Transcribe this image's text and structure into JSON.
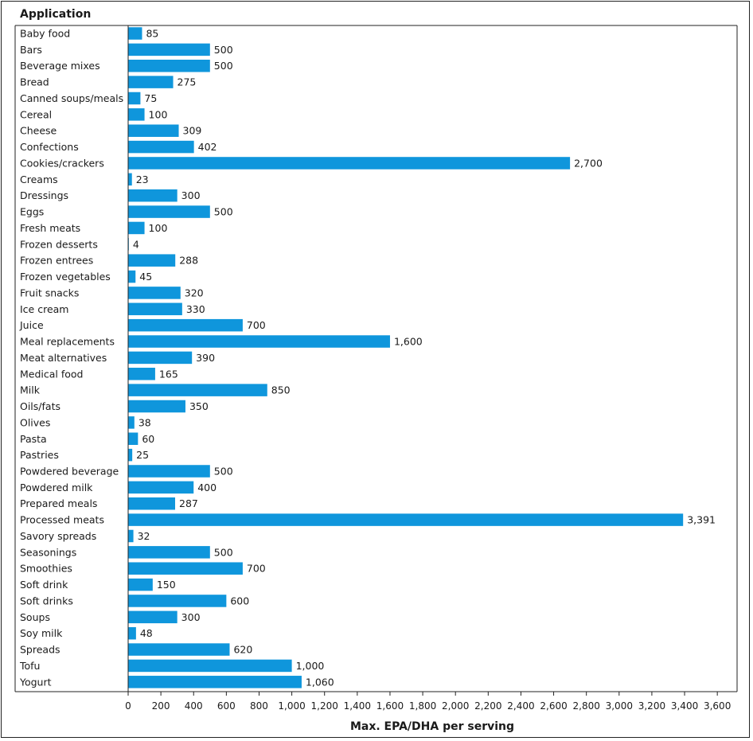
{
  "chart_data": {
    "type": "bar",
    "orientation": "horizontal",
    "title": "",
    "category_header": "Application",
    "xlabel": "Max. EPA/DHA per serving",
    "ylabel": "Application",
    "xlim": [
      0,
      3600
    ],
    "tick_step": 200,
    "tick_labels": [
      "0",
      "200",
      "400",
      "600",
      "800",
      "1,000",
      "1,200",
      "1,400",
      "1,600",
      "1,800",
      "2,000",
      "2,200",
      "2,400",
      "2,600",
      "2,800",
      "3,000",
      "3,200",
      "3,400",
      "3,600"
    ],
    "bar_color": "#0f96dc",
    "grid": false,
    "categories": [
      "Baby food",
      "Bars",
      "Beverage mixes",
      "Bread",
      "Canned soups/meals",
      "Cereal",
      "Cheese",
      "Confections",
      "Cookies/crackers",
      "Creams",
      "Dressings",
      "Eggs",
      "Fresh meats",
      "Frozen desserts",
      "Frozen entrees",
      "Frozen vegetables",
      "Fruit snacks",
      "Ice cream",
      "Juice",
      "Meal replacements",
      "Meat alternatives",
      "Medical food",
      "Milk",
      "Oils/fats",
      "Olives",
      "Pasta",
      "Pastries",
      "Powdered beverage",
      "Powdered milk",
      "Prepared meals",
      "Processed meats",
      "Savory spreads",
      "Seasonings",
      "Smoothies",
      "Soft drink",
      "Soft drinks",
      "Soups",
      "Soy milk",
      "Spreads",
      "Tofu",
      "Yogurt"
    ],
    "values": [
      85,
      500,
      500,
      275,
      75,
      100,
      309,
      402,
      2700,
      23,
      300,
      500,
      100,
      4,
      288,
      45,
      320,
      330,
      700,
      1600,
      390,
      165,
      850,
      350,
      38,
      60,
      25,
      500,
      400,
      287,
      3391,
      32,
      500,
      700,
      150,
      600,
      300,
      48,
      620,
      1000,
      1060
    ],
    "value_labels": [
      "85",
      "500",
      "500",
      "275",
      "75",
      "100",
      "309",
      "402",
      "2,700",
      "23",
      "300",
      "500",
      "100",
      "4",
      "288",
      "45",
      "320",
      "330",
      "700",
      "1,600",
      "390",
      "165",
      "850",
      "350",
      "38",
      "60",
      "25",
      "500",
      "400",
      "287",
      "3,391",
      "32",
      "500",
      "700",
      "150",
      "600",
      "300",
      "48",
      "620",
      "1,000",
      "1,060"
    ]
  }
}
